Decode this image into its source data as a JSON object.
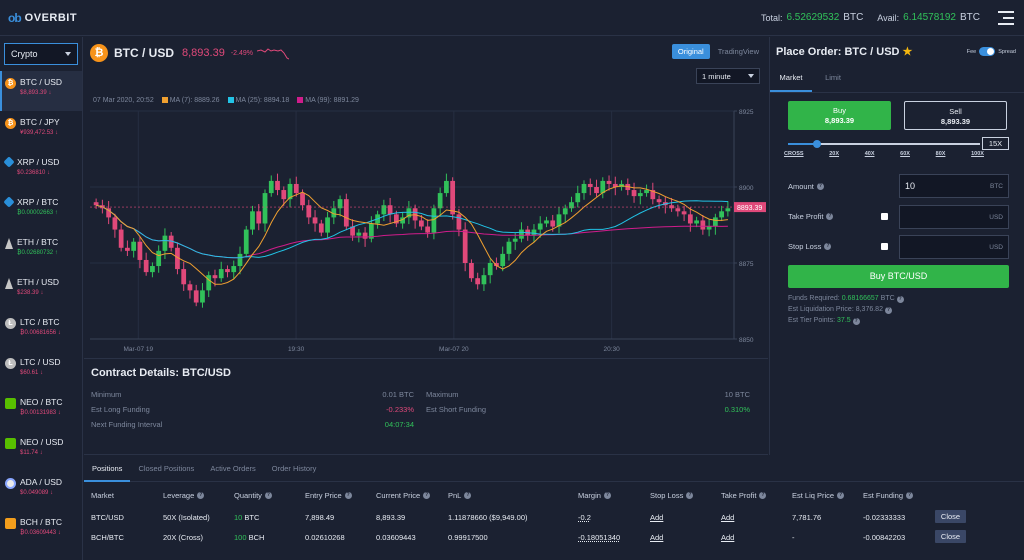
{
  "topbar": {
    "logo_mark": "ob",
    "logo_text": "OVERBIT",
    "total_label": "Total:",
    "total_value": "6.52629532",
    "total_unit": "BTC",
    "avail_label": "Avail:",
    "avail_value": "6.14578192",
    "avail_unit": "BTC",
    "menu_icon": "menu-icon"
  },
  "sidebar": {
    "category": "Crypto",
    "pairs": [
      {
        "name": "BTC / USD",
        "price": "$8,893.39 ↓",
        "dir": "down",
        "icon": "btc"
      },
      {
        "name": "BTC / JPY",
        "price": "¥939,472.53 ↓",
        "dir": "down",
        "icon": "btc"
      },
      {
        "name": "XRP / USD",
        "price": "$0.236810 ↓",
        "dir": "down",
        "icon": "xrp"
      },
      {
        "name": "XRP / BTC",
        "price": "₿0.00002663 ↑",
        "dir": "up",
        "icon": "xrp"
      },
      {
        "name": "ETH / BTC",
        "price": "₿0.02680732 ↑",
        "dir": "up",
        "icon": "eth"
      },
      {
        "name": "ETH / USD",
        "price": "$238.39 ↓",
        "dir": "down",
        "icon": "eth"
      },
      {
        "name": "LTC / BTC",
        "price": "₿0.00681656 ↓",
        "dir": "down",
        "icon": "ltc"
      },
      {
        "name": "LTC / USD",
        "price": "$60.61 ↓",
        "dir": "down",
        "icon": "ltc"
      },
      {
        "name": "NEO / BTC",
        "price": "₿0.00131983 ↓",
        "dir": "down",
        "icon": "neo"
      },
      {
        "name": "NEO / USD",
        "price": "$11.74 ↓",
        "dir": "down",
        "icon": "neo"
      },
      {
        "name": "ADA / USD",
        "price": "$0.049089 ↓",
        "dir": "down",
        "icon": "ada"
      },
      {
        "name": "BCH / BTC",
        "price": "₿0.03609443 ↓",
        "dir": "down",
        "icon": "bch"
      }
    ]
  },
  "chart_header": {
    "pair": "BTC / USD",
    "price": "8,893.39",
    "change": "-2.49%",
    "original_label": "Original",
    "tradingview_label": "TradingView",
    "interval": "1 minute",
    "date": "07 Mar 2020, 20:52",
    "ma7": "MA (7): 8889.26",
    "ma25": "MA (25): 8894.18",
    "ma99": "MA (99): 8891.29",
    "current_tag": "8893.39"
  },
  "chart_data": {
    "type": "candlestick",
    "x_ticks": [
      "Mar-07 19",
      "19:30",
      "Mar-07 20",
      "20:30"
    ],
    "y_ticks": [
      8925,
      8900,
      8875,
      8850
    ],
    "ylim": [
      8850,
      8925
    ],
    "colors": {
      "up": "#31c15a",
      "down": "#e0497a",
      "ma7": "#f0a030",
      "ma25": "#22c3e6",
      "ma99": "#d01c8b"
    },
    "closes": [
      8894,
      8893,
      8890,
      8886,
      8880,
      8879,
      8882,
      8876,
      8872,
      8874,
      8879,
      8884,
      8880,
      8873,
      8868,
      8866,
      8862,
      8866,
      8871,
      8870,
      8873,
      8872,
      8874,
      8878,
      8886,
      8892,
      8888,
      8898,
      8902,
      8899,
      8896,
      8901,
      8898,
      8894,
      8890,
      8888,
      8885,
      8890,
      8893,
      8896,
      8887,
      8884,
      8885,
      8883,
      8888,
      8891,
      8894,
      8891,
      8888,
      8890,
      8893,
      8889,
      8887,
      8885,
      8893,
      8898,
      8902,
      8891,
      8886,
      8875,
      8870,
      8868,
      8871,
      8875,
      8874,
      8878,
      8882,
      8883,
      8886,
      8884,
      8886,
      8888,
      8889,
      8887,
      8891,
      8893,
      8895,
      8898,
      8901,
      8900,
      8898,
      8902,
      8901,
      8900,
      8901,
      8899,
      8897,
      8898,
      8899,
      8896,
      8895,
      8894,
      8893,
      8892,
      8891,
      8888,
      8889,
      8886,
      8887,
      8890,
      8892,
      8893
    ]
  },
  "contract": {
    "title": "Contract Details: BTC/USD",
    "minimum_label": "Minimum",
    "minimum_value": "0.01 BTC",
    "maximum_label": "Maximum",
    "maximum_value": "10 BTC",
    "long_label": "Est Long Funding",
    "long_value": "-0.233%",
    "short_label": "Est Short Funding",
    "short_value": "0.310%",
    "interval_label": "Next Funding Interval",
    "interval_value": "04:07:34"
  },
  "order": {
    "title": "Place Order: BTC / USD",
    "star_icon": "star-icon",
    "fee_label": "Fee",
    "spread_label": "Spread",
    "tab_market": "Market",
    "tab_limit": "Limit",
    "buy_label": "Buy",
    "buy_price": "8,893.39",
    "sell_label": "Sell",
    "sell_price": "8,893.39",
    "leverage_value": "15X",
    "leverage_level": 0.15,
    "leverage_options": [
      "CROSS",
      "20X",
      "40X",
      "60X",
      "80X",
      "100X"
    ],
    "amount_label": "Amount",
    "amount_value": "10",
    "amount_unit": "BTC",
    "tp_label": "Take Profit",
    "tp_unit": "USD",
    "sl_label": "Stop Loss",
    "sl_unit": "USD",
    "submit_label": "Buy BTC/USD",
    "funds_label": "Funds Required:",
    "funds_value": "0.68166657",
    "funds_unit": "BTC",
    "liq_label": "Est Liquidation Price:",
    "liq_value": "8,376.82",
    "tier_label": "Est Tier Points:",
    "tier_value": "37.5"
  },
  "bottom": {
    "tabs": [
      "Positions",
      "Closed Positions",
      "Active Orders",
      "Order History"
    ],
    "headers": [
      "Market",
      "Leverage",
      "Quantity",
      "Entry Price",
      "Current Price",
      "PnL",
      "Margin",
      "Stop Loss",
      "Take Profit",
      "Est Liq Price",
      "Est Funding"
    ],
    "rows": [
      {
        "market": "BTC/USD",
        "leverage": "50X (Isolated)",
        "qty_num": "10",
        "qty_unit": "BTC",
        "entry": "7,898.49",
        "current": "8,893.39",
        "pnl": "1.11878660 ($9,949.00)",
        "margin": "-0.2",
        "stop": "Add",
        "take": "Add",
        "liq": "7,781.76",
        "funding": "-0.02333333",
        "close": "Close"
      },
      {
        "market": "BCH/BTC",
        "leverage": "20X (Cross)",
        "qty_num": "100",
        "qty_unit": "BCH",
        "entry": "0.02610268",
        "current": "0.03609443",
        "pnl": "0.99917500",
        "margin": "-0.18051340",
        "stop": "Add",
        "take": "Add",
        "liq": "-",
        "funding": "-0.00842203",
        "close": "Close"
      }
    ]
  }
}
